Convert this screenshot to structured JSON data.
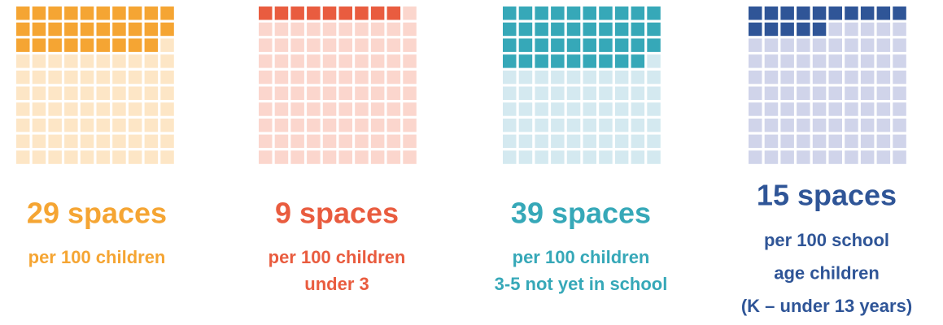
{
  "chart_data": [
    {
      "type": "waffle",
      "value": 29,
      "value_label": "29 spaces",
      "subtitle": [
        "per 100 children"
      ],
      "color": "#f5a533",
      "empty_color": "#fde6c6"
    },
    {
      "type": "waffle",
      "value": 9,
      "value_label": "9 spaces",
      "subtitle": [
        "per 100 children",
        "under 3"
      ],
      "color": "#e95c3f",
      "empty_color": "#fbd6cd"
    },
    {
      "type": "waffle",
      "value": 39,
      "value_label": "39 spaces",
      "subtitle": [
        "per 100 children",
        "3-5 not yet in school"
      ],
      "color": "#36a8b8",
      "empty_color": "#d4e9f0"
    },
    {
      "type": "waffle",
      "value": 15,
      "value_label": "15 spaces",
      "subtitle": [
        "per 100 school",
        "age children",
        "(K – under 13 years)"
      ],
      "color": "#2f5597",
      "empty_color": "#d0d4ea"
    }
  ]
}
